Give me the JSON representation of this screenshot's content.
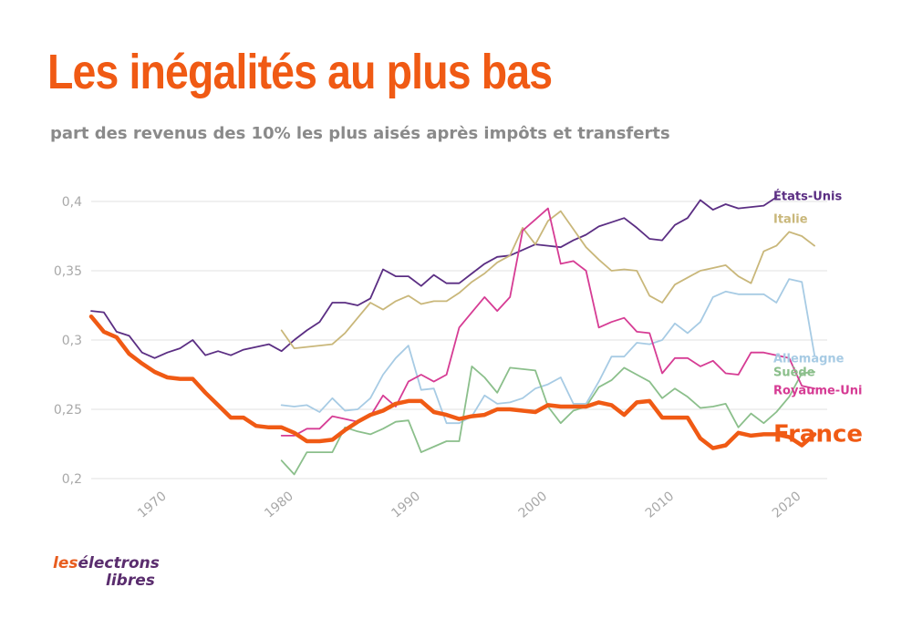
{
  "title": "Les inégalités au plus bas",
  "subtitle": "part des revenus des 10% les plus aisés après impôts et transferts",
  "logo": {
    "word1": "les",
    "word2": "électrons",
    "word3": "libres"
  },
  "colors": {
    "title": "#f05a14",
    "grid": "#e2e2e2",
    "tick": "#a8a8a8"
  },
  "chart_data": {
    "type": "line",
    "title": "Les inégalités au plus bas",
    "subtitle": "part des revenus des 10% les plus aisés après impôts et transferts",
    "xlabel": "",
    "ylabel": "",
    "xlim": [
      1965,
      2023
    ],
    "ylim": [
      0.2,
      0.4
    ],
    "x_ticks": [
      1970,
      1980,
      1990,
      2000,
      2010,
      2020
    ],
    "y_ticks": [
      0.2,
      0.25,
      0.3,
      0.35,
      0.4
    ],
    "y_tick_labels": [
      "0,2",
      "0,25",
      "0,3",
      "0,35",
      "0,4"
    ],
    "grid": "horizontal",
    "legend": "direct labels at right end of lines",
    "series": [
      {
        "name": "États-Unis",
        "color": "#5b2e83",
        "emphasis": false,
        "x": [
          1965,
          1966,
          1967,
          1968,
          1969,
          1970,
          1971,
          1972,
          1973,
          1974,
          1975,
          1976,
          1977,
          1978,
          1979,
          1980,
          1981,
          1982,
          1983,
          1984,
          1985,
          1986,
          1987,
          1988,
          1989,
          1990,
          1991,
          1992,
          1993,
          1994,
          1995,
          1996,
          1997,
          1998,
          1999,
          2000,
          2001,
          2002,
          2003,
          2004,
          2005,
          2006,
          2007,
          2008,
          2009,
          2010,
          2011,
          2012,
          2013,
          2014,
          2015,
          2016,
          2017,
          2018,
          2019
        ],
        "values": [
          0.321,
          0.32,
          0.306,
          0.303,
          0.291,
          0.287,
          0.291,
          0.294,
          0.3,
          0.289,
          0.292,
          0.289,
          0.293,
          0.295,
          0.297,
          0.292,
          0.3,
          0.307,
          0.313,
          0.327,
          0.327,
          0.325,
          0.33,
          0.351,
          0.346,
          0.346,
          0.339,
          0.347,
          0.341,
          0.341,
          0.348,
          0.355,
          0.36,
          0.361,
          0.365,
          0.369,
          0.368,
          0.367,
          0.372,
          0.376,
          0.382,
          0.385,
          0.388,
          0.381,
          0.373,
          0.372,
          0.383,
          0.388,
          0.401,
          0.394,
          0.398,
          0.395,
          0.396,
          0.397,
          0.403
        ]
      },
      {
        "name": "Italie",
        "color": "#c9b77a",
        "emphasis": false,
        "x": [
          1980,
          1981,
          1982,
          1983,
          1984,
          1985,
          1986,
          1987,
          1988,
          1989,
          1990,
          1991,
          1992,
          1993,
          1994,
          1995,
          1996,
          1997,
          1998,
          1999,
          2000,
          2001,
          2002,
          2003,
          2004,
          2005,
          2006,
          2007,
          2008,
          2009,
          2010,
          2011,
          2012,
          2013,
          2014,
          2015,
          2016,
          2017,
          2018,
          2019,
          2020,
          2021,
          2022
        ],
        "values": [
          0.307,
          0.294,
          0.295,
          0.296,
          0.297,
          0.305,
          0.316,
          0.327,
          0.322,
          0.328,
          0.332,
          0.326,
          0.328,
          0.328,
          0.334,
          0.342,
          0.348,
          0.356,
          0.361,
          0.381,
          0.369,
          0.386,
          0.393,
          0.38,
          0.367,
          0.358,
          0.35,
          0.351,
          0.35,
          0.332,
          0.327,
          0.34,
          0.345,
          0.35,
          0.352,
          0.354,
          0.346,
          0.341,
          0.364,
          0.368,
          0.378,
          0.375,
          0.368
        ]
      },
      {
        "name": "Allemagne",
        "color": "#a7cbe4",
        "emphasis": false,
        "x": [
          1980,
          1981,
          1982,
          1983,
          1984,
          1985,
          1986,
          1987,
          1988,
          1989,
          1990,
          1991,
          1992,
          1993,
          1994,
          1995,
          1996,
          1997,
          1998,
          1999,
          2000,
          2001,
          2002,
          2003,
          2004,
          2005,
          2006,
          2007,
          2008,
          2009,
          2010,
          2011,
          2012,
          2013,
          2014,
          2015,
          2016,
          2017,
          2018,
          2019,
          2020,
          2021,
          2022
        ],
        "values": [
          0.253,
          0.252,
          0.253,
          0.248,
          0.258,
          0.249,
          0.25,
          0.258,
          0.275,
          0.287,
          0.296,
          0.264,
          0.265,
          0.24,
          0.24,
          0.245,
          0.26,
          0.254,
          0.255,
          0.258,
          0.265,
          0.268,
          0.273,
          0.254,
          0.254,
          0.27,
          0.288,
          0.288,
          0.298,
          0.297,
          0.3,
          0.312,
          0.305,
          0.313,
          0.331,
          0.335,
          0.333,
          0.333,
          0.333,
          0.327,
          0.344,
          0.342,
          0.289
        ]
      },
      {
        "name": "Suède",
        "color": "#8bbf8b",
        "emphasis": false,
        "x": [
          1980,
          1981,
          1982,
          1983,
          1984,
          1985,
          1986,
          1987,
          1988,
          1989,
          1990,
          1991,
          1992,
          1993,
          1994,
          1995,
          1996,
          1997,
          1998,
          1999,
          2000,
          2001,
          2002,
          2003,
          2004,
          2005,
          2006,
          2007,
          2008,
          2009,
          2010,
          2011,
          2012,
          2013,
          2014,
          2015,
          2016,
          2017,
          2018,
          2019,
          2020,
          2021,
          2022
        ],
        "values": [
          0.213,
          0.203,
          0.219,
          0.219,
          0.219,
          0.237,
          0.234,
          0.232,
          0.236,
          0.241,
          0.242,
          0.219,
          0.223,
          0.227,
          0.227,
          0.281,
          0.273,
          0.262,
          0.28,
          0.279,
          0.278,
          0.252,
          0.24,
          0.249,
          0.252,
          0.266,
          0.271,
          0.28,
          0.275,
          0.27,
          0.258,
          0.265,
          0.259,
          0.251,
          0.252,
          0.254,
          0.237,
          0.247,
          0.24,
          0.248,
          0.259,
          0.276,
          0.277
        ]
      },
      {
        "name": "Royaume-Uni",
        "color": "#d63c94",
        "emphasis": false,
        "x": [
          1980,
          1981,
          1982,
          1983,
          1984,
          1985,
          1986,
          1987,
          1988,
          1989,
          1990,
          1991,
          1992,
          1993,
          1994,
          1995,
          1996,
          1997,
          1998,
          1999,
          2000,
          2001,
          2002,
          2003,
          2004,
          2005,
          2006,
          2007,
          2008,
          2009,
          2010,
          2011,
          2012,
          2013,
          2014,
          2015,
          2016,
          2017,
          2018,
          2019,
          2020,
          2021,
          2022
        ],
        "values": [
          0.231,
          0.231,
          0.236,
          0.236,
          0.245,
          0.243,
          0.241,
          0.245,
          0.26,
          0.252,
          0.27,
          0.275,
          0.27,
          0.275,
          0.309,
          0.32,
          0.331,
          0.321,
          0.331,
          0.379,
          0.387,
          0.395,
          0.355,
          0.357,
          0.35,
          0.309,
          0.313,
          0.316,
          0.306,
          0.305,
          0.276,
          0.287,
          0.287,
          0.281,
          0.285,
          0.276,
          0.275,
          0.291,
          0.291,
          0.289,
          0.287,
          0.267,
          0.265
        ]
      },
      {
        "name": "France",
        "color": "#f05a14",
        "emphasis": true,
        "x": [
          1965,
          1966,
          1967,
          1968,
          1969,
          1970,
          1971,
          1972,
          1973,
          1974,
          1975,
          1976,
          1977,
          1978,
          1979,
          1980,
          1981,
          1982,
          1983,
          1984,
          1985,
          1986,
          1987,
          1988,
          1989,
          1990,
          1991,
          1992,
          1993,
          1994,
          1995,
          1996,
          1997,
          1998,
          1999,
          2000,
          2001,
          2002,
          2003,
          2004,
          2005,
          2006,
          2007,
          2008,
          2009,
          2010,
          2011,
          2012,
          2013,
          2014,
          2015,
          2016,
          2017,
          2018,
          2019,
          2020,
          2021,
          2022
        ],
        "values": [
          0.317,
          0.306,
          0.302,
          0.29,
          0.283,
          0.277,
          0.273,
          0.272,
          0.272,
          0.262,
          0.253,
          0.244,
          0.244,
          0.238,
          0.237,
          0.237,
          0.233,
          0.227,
          0.227,
          0.228,
          0.235,
          0.241,
          0.246,
          0.249,
          0.254,
          0.256,
          0.256,
          0.248,
          0.246,
          0.243,
          0.245,
          0.246,
          0.25,
          0.25,
          0.249,
          0.248,
          0.253,
          0.252,
          0.252,
          0.252,
          0.255,
          0.253,
          0.246,
          0.255,
          0.256,
          0.244,
          0.244,
          0.244,
          0.229,
          0.222,
          0.224,
          0.233,
          0.231,
          0.232,
          0.232,
          0.23,
          0.224,
          0.232
        ]
      }
    ]
  }
}
